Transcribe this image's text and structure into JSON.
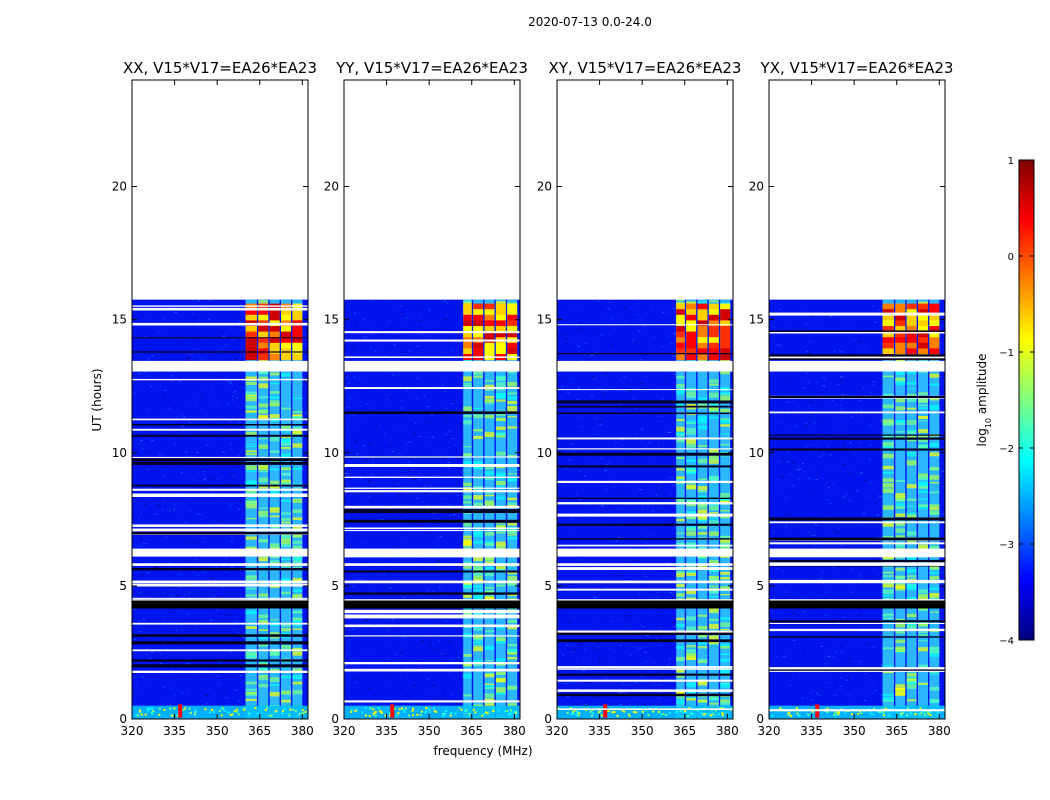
{
  "chart_data": {
    "type": "heatmap",
    "suptitle": "2020-07-13 0.0-24.0",
    "xlabel": "frequency (MHz)",
    "ylabel": "UT (hours)",
    "xlim": [
      320,
      382
    ],
    "ylim": [
      0,
      24
    ],
    "xticks": [
      "320",
      "335",
      "350",
      "365",
      "380"
    ],
    "yticks": [
      "0",
      "5",
      "10",
      "15",
      "20"
    ],
    "data_end_hour": 15.75,
    "gap_bands_hours": [
      [
        13.05,
        13.45
      ],
      [
        6.1,
        6.4
      ],
      [
        5.75,
        5.85
      ],
      [
        5.1,
        5.2
      ],
      [
        4.3,
        4.5
      ]
    ],
    "colorbar": {
      "label": "log10 amplitude",
      "label_base": "log",
      "label_sub": "10",
      "label_rest": " amplitude",
      "range": [
        -4,
        1
      ],
      "ticks": [
        "1",
        "0",
        "−1",
        "−2",
        "−3",
        "−4"
      ],
      "colormap": "jet",
      "stops": [
        "#00007f",
        "#0000ff",
        "#007fff",
        "#00ffff",
        "#7fff7f",
        "#ffff00",
        "#ff7f00",
        "#ff0000",
        "#7f0000"
      ]
    },
    "panels": [
      {
        "title": "XX, V15*V17=EA26*EA23",
        "rfi_bands_mhz": [
          [
            360,
            364
          ],
          [
            364.5,
            368
          ],
          [
            368.5,
            372
          ],
          [
            372.5,
            376
          ],
          [
            376.5,
            380
          ]
        ],
        "strong_hours": [
          13.5,
          15.6
        ]
      },
      {
        "title": "YY, V15*V17=EA26*EA23",
        "rfi_bands_mhz": [
          [
            362,
            365
          ],
          [
            365.5,
            369
          ],
          [
            369.5,
            373
          ],
          [
            373.5,
            377
          ],
          [
            377.5,
            381
          ]
        ],
        "strong_hours": [
          13.5,
          15.6
        ]
      },
      {
        "title": "XY, V15*V17=EA26*EA23",
        "rfi_bands_mhz": [
          [
            362,
            365
          ],
          [
            365.5,
            369
          ],
          [
            369.5,
            373
          ],
          [
            373.5,
            377
          ],
          [
            377.5,
            381
          ]
        ],
        "strong_hours": [
          13.5,
          15.6
        ]
      },
      {
        "title": "YX, V15*V17=EA26*EA23",
        "rfi_bands_mhz": [
          [
            360,
            364
          ],
          [
            364.5,
            368
          ],
          [
            368.5,
            372
          ],
          [
            372.5,
            376
          ],
          [
            376.5,
            380
          ]
        ],
        "strong_hours": [
          13.5,
          15.6
        ]
      }
    ]
  }
}
